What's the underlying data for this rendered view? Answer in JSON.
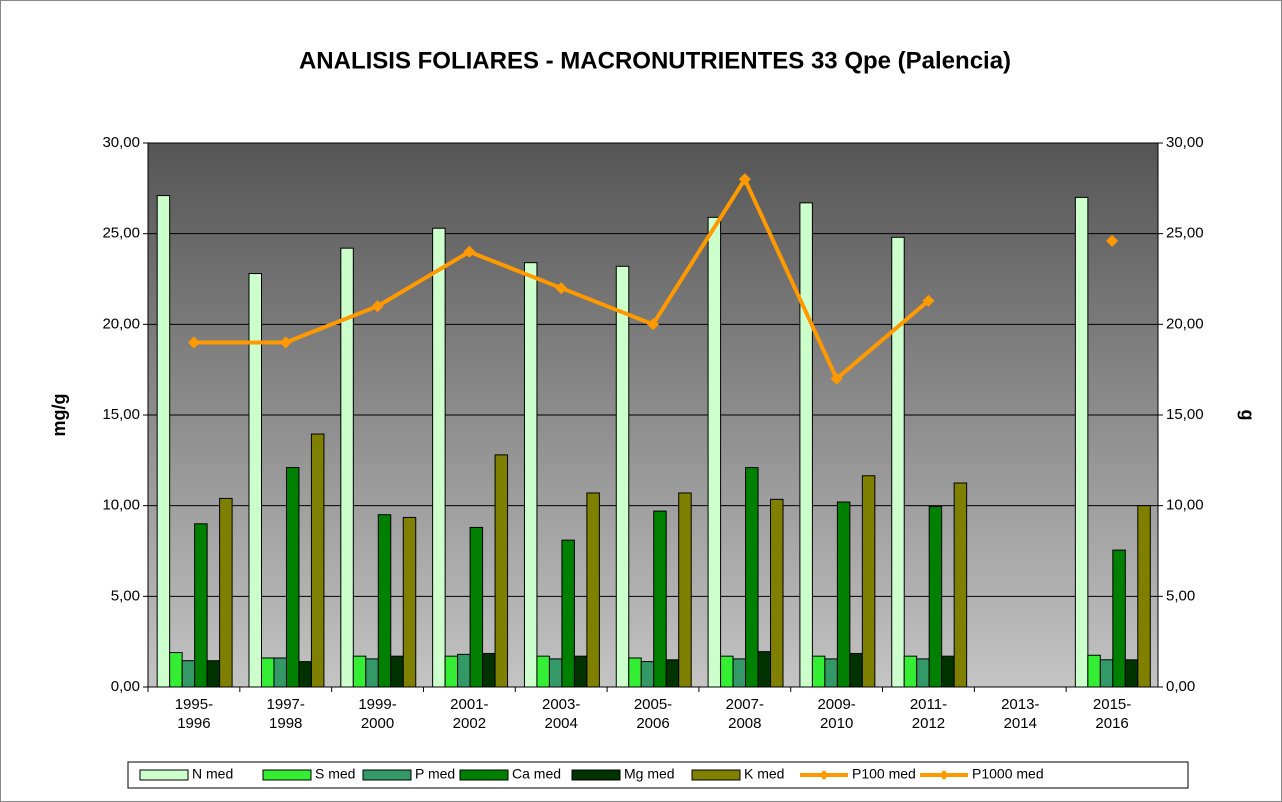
{
  "chart_data": {
    "type": "bar",
    "title": "ANALISIS FOLIARES - MACRONUTRIENTES 33 Qpe (Palencia)",
    "y_label": "mg/g",
    "y2_label": "g",
    "categories": [
      "1995-1996",
      "1997-1998",
      "1999-2000",
      "2001-2002",
      "2003-2004",
      "2005-2006",
      "2007-2008",
      "2009-2010",
      "2011-2012",
      "2013-2014",
      "2015-2016"
    ],
    "series": [
      {
        "name": "N med",
        "type": "bar",
        "color": "#ccffcc",
        "values": [
          27.1,
          22.8,
          24.2,
          25.3,
          23.4,
          23.2,
          25.9,
          26.7,
          24.8,
          null,
          27.0
        ]
      },
      {
        "name": "S med",
        "type": "bar",
        "color": "#33ee33",
        "values": [
          1.9,
          1.6,
          1.7,
          1.7,
          1.7,
          1.6,
          1.7,
          1.7,
          1.7,
          null,
          1.75
        ]
      },
      {
        "name": "P med",
        "type": "bar",
        "color": "#339966",
        "values": [
          1.45,
          1.6,
          1.55,
          1.8,
          1.55,
          1.4,
          1.55,
          1.55,
          1.55,
          null,
          1.5
        ]
      },
      {
        "name": "Ca med",
        "type": "bar",
        "color": "#008000",
        "values": [
          9.0,
          12.1,
          9.5,
          8.8,
          8.1,
          9.7,
          12.1,
          10.2,
          9.95,
          null,
          7.55
        ]
      },
      {
        "name": "Mg med",
        "type": "bar",
        "color": "#003300",
        "values": [
          1.45,
          1.4,
          1.7,
          1.85,
          1.7,
          1.5,
          1.95,
          1.85,
          1.7,
          null,
          1.5
        ]
      },
      {
        "name": "K med",
        "type": "bar",
        "color": "#808000",
        "values": [
          10.4,
          13.95,
          9.35,
          12.8,
          10.7,
          10.7,
          10.35,
          11.65,
          11.25,
          null,
          10.0
        ]
      },
      {
        "name": "P100 med",
        "type": "line",
        "axis": "y2",
        "color": "#ff9900",
        "values": [
          19,
          19,
          21,
          24,
          22,
          20,
          28,
          17,
          21.3,
          null,
          24.6
        ]
      },
      {
        "name": "P1000 med",
        "type": "line",
        "axis": "y2",
        "color": "#ff9900",
        "values": [
          null,
          null,
          null,
          null,
          null,
          null,
          null,
          null,
          null,
          null,
          null
        ]
      }
    ],
    "ylim": [
      0,
      30
    ],
    "yticks": [
      {
        "value": 0,
        "label": "0,00"
      },
      {
        "value": 5,
        "label": "5,00"
      },
      {
        "value": 10,
        "label": "10,00"
      },
      {
        "value": 15,
        "label": "15,00"
      },
      {
        "value": 20,
        "label": "20,00"
      },
      {
        "value": 25,
        "label": "25,00"
      },
      {
        "value": 30,
        "label": "30,00"
      }
    ],
    "y2lim": [
      0,
      30
    ],
    "y2ticks": [
      {
        "value": 0,
        "label": "0,00"
      },
      {
        "value": 5,
        "label": "5,00"
      },
      {
        "value": 10,
        "label": "10,00"
      },
      {
        "value": 15,
        "label": "15,00"
      },
      {
        "value": 20,
        "label": "20,00"
      },
      {
        "value": 25,
        "label": "25,00"
      },
      {
        "value": 30,
        "label": "30,00"
      }
    ],
    "grid": true,
    "legend": "bottom"
  }
}
